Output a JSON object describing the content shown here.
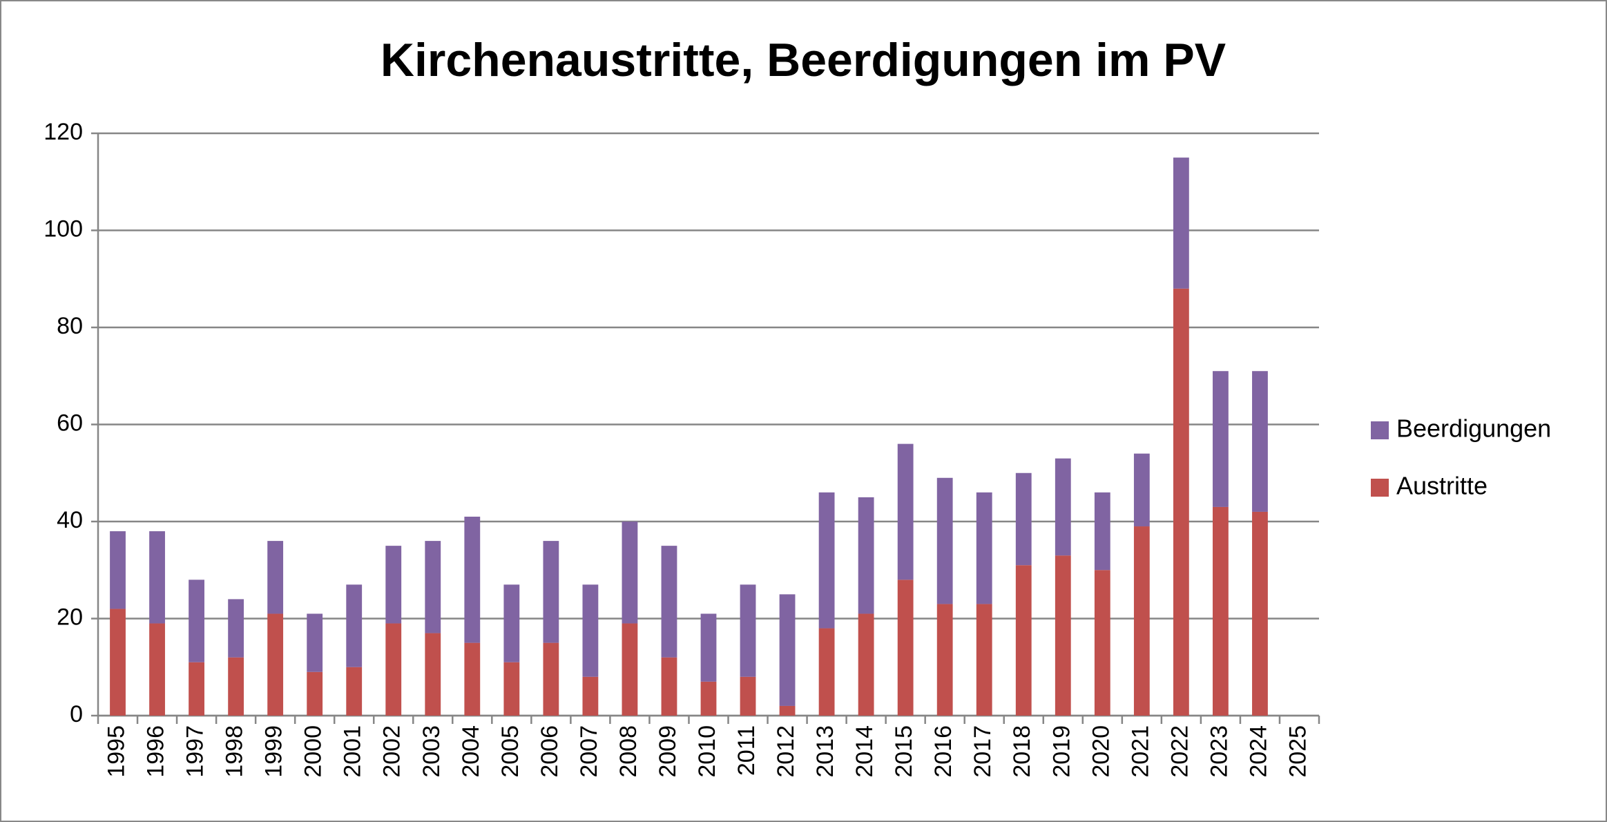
{
  "chart_data": {
    "type": "stacked_bar",
    "title": "Kirchenaustritte, Beerdigungen im PV",
    "categories": [
      "1995",
      "1996",
      "1997",
      "1998",
      "1999",
      "2000",
      "2001",
      "2002",
      "2003",
      "2004",
      "2005",
      "2006",
      "2007",
      "2008",
      "2009",
      "2010",
      "2011",
      "2012",
      "2013",
      "2014",
      "2015",
      "2016",
      "2017",
      "2018",
      "2019",
      "2020",
      "2021",
      "2022",
      "2023",
      "2024",
      "2025"
    ],
    "series": [
      {
        "name": "Austritte",
        "color": "#c0504d",
        "values": [
          22,
          19,
          11,
          12,
          21,
          9,
          10,
          19,
          17,
          15,
          11,
          15,
          8,
          19,
          12,
          7,
          8,
          2,
          18,
          21,
          28,
          23,
          23,
          31,
          33,
          30,
          39,
          88,
          43,
          42,
          null
        ]
      },
      {
        "name": "Beerdigungen",
        "color": "#8064a2",
        "values": [
          16,
          19,
          17,
          12,
          15,
          12,
          17,
          16,
          19,
          26,
          16,
          21,
          19,
          21,
          23,
          14,
          19,
          23,
          28,
          24,
          28,
          26,
          23,
          19,
          20,
          16,
          15,
          27,
          28,
          29,
          null
        ]
      }
    ],
    "ylim": [
      0,
      120
    ],
    "yticks": [
      0,
      20,
      40,
      60,
      80,
      100,
      120
    ],
    "grid": true,
    "legend": "right"
  }
}
